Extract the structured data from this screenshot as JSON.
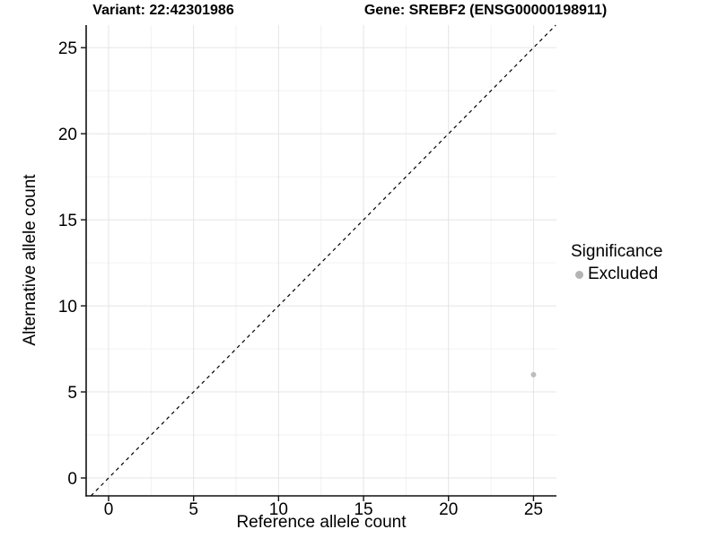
{
  "chart_data": {
    "type": "scatter",
    "title_left": "Variant: 22:42301986",
    "title_right": "Gene: SREBF2 (ENSG00000198911)",
    "xlabel": "Reference allele count",
    "ylabel": "Alternative allele count",
    "x": {
      "range": [
        -1.32,
        26.35
      ],
      "major_ticks": [
        0,
        5,
        10,
        15,
        20,
        25
      ],
      "minor_ticks": [
        2.5,
        7.5,
        12.5,
        17.5,
        22.5
      ]
    },
    "y": {
      "range": [
        -1.04,
        26.31
      ],
      "major_ticks": [
        0,
        5,
        10,
        15,
        20,
        25
      ],
      "minor_ticks": [
        2.5,
        7.5,
        12.5,
        17.5,
        22.5
      ]
    },
    "series": [
      {
        "name": "Excluded",
        "color": "#bdbdbd",
        "points": [
          {
            "x": 25,
            "y": 6
          }
        ]
      }
    ],
    "reference_line": {
      "type": "identity",
      "slope": 1,
      "intercept": 0,
      "color": "#000000",
      "dash": "4 4"
    },
    "legend": {
      "title": "Significance",
      "position": "right",
      "entries": [
        {
          "label": "Excluded",
          "color": "#b4b4b4"
        }
      ]
    },
    "grid": {
      "background": "#ffffff",
      "major_color": "#e4e4e4",
      "minor_color": "#f2f2f2"
    },
    "axis": {
      "line_color": "#111111",
      "tick_color": "#111111",
      "tick_label_color": "#000000"
    }
  }
}
